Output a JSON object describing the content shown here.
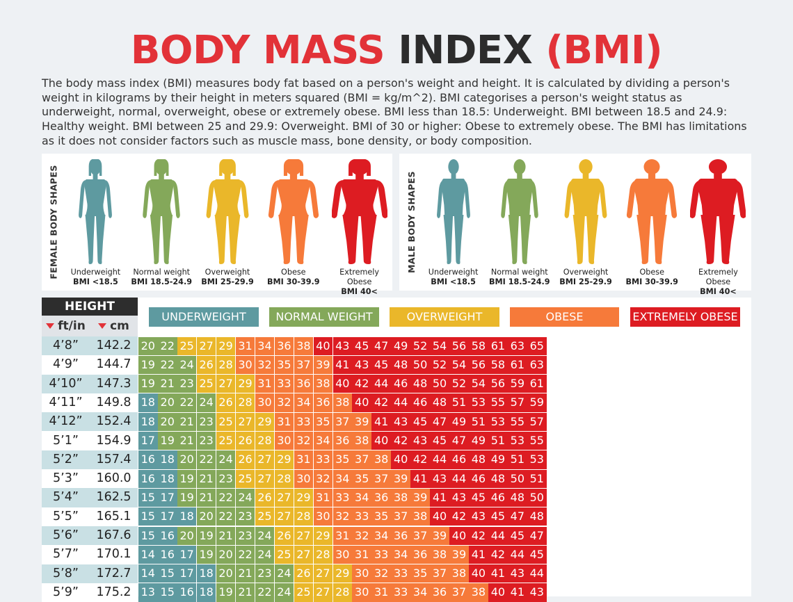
{
  "title": {
    "part1": "BODY MASS",
    "part2": "INDEX",
    "part3": "(BMI)"
  },
  "intro": "The body mass index (BMI) measures body fat based on a person's weight and height. It is calculated by dividing a person's weight in kilograms by their height in meters squared (BMI = kg/m^2). BMI categorises a person's weight status as underweight, normal, overweight, obese or extremely obese. BMI less than 18.5: Underweight. BMI between 18.5 and 24.9: Healthy weight. BMI between 25 and 29.9: Overweight. BMI of 30 or higher: Obese to extremely obese. The BMI has limitations as it does not consider factors such as muscle mass, bone density, or body composition.",
  "female_panel_label": "FEMALE BODY SHAPES",
  "male_panel_label": "MALE BODY SHAPES",
  "body_shapes": [
    {
      "label": "Underweight",
      "bmi": "BMI <18.5",
      "color": "#5e9aa0"
    },
    {
      "label": "Normal weight",
      "bmi": "BMI 18.5-24.9",
      "color": "#84a85a"
    },
    {
      "label": "Overweight",
      "bmi": "BMI 25-29.9",
      "color": "#eab72a"
    },
    {
      "label": "Obese",
      "bmi": "BMI 30-39.9",
      "color": "#f67a3a"
    },
    {
      "label": "Extremely Obese",
      "bmi": "BMI 40<",
      "color": "#dd1c22"
    }
  ],
  "table": {
    "height_header": "HEIGHT",
    "unit_ft": "ft/in",
    "unit_cm": "cm",
    "legend": [
      {
        "label": "UNDERWEIGHT",
        "color": "#5e9aa0"
      },
      {
        "label": "NORMAL WEIGHT",
        "color": "#84a85a"
      },
      {
        "label": "OVERWEIGHT",
        "color": "#eab72a"
      },
      {
        "label": "OBESE",
        "color": "#f67a3a"
      },
      {
        "label": "EXTREMELY OBESE",
        "color": "#dd1c22"
      }
    ],
    "row_colors": [
      "#c9e0e4",
      "#ffffff"
    ],
    "category_colors": {
      "underweight": "#5e9aa0",
      "normal": "#84a85a",
      "overweight": "#eab72a",
      "obese": "#f67a3a",
      "extremely_obese": "#dd1c22"
    }
  },
  "chart_data": {
    "type": "table",
    "columns_shown": 21,
    "heights_ft_in": [
      "4’8”",
      "4’9”",
      "4’10”",
      "4’11”",
      "4’12”",
      "5’1”",
      "5’2”",
      "5’3”",
      "5’4”",
      "5’5”",
      "5’6”",
      "5’7”",
      "5’8”",
      "5’9”"
    ],
    "heights_cm": [
      "142.2",
      "144.7",
      "147.3",
      "149.8",
      "152.4",
      "154.9",
      "157.4",
      "160.0",
      "162.5",
      "165.1",
      "167.6",
      "170.1",
      "172.7",
      "175.2"
    ],
    "bmi_values": [
      [
        20,
        22,
        25,
        27,
        29,
        31,
        34,
        36,
        38,
        40,
        43,
        45,
        47,
        49,
        52,
        54,
        56,
        58,
        61,
        63,
        65
      ],
      [
        19,
        22,
        24,
        26,
        28,
        30,
        32,
        35,
        37,
        39,
        41,
        43,
        45,
        48,
        50,
        52,
        54,
        56,
        58,
        61,
        63
      ],
      [
        19,
        21,
        23,
        25,
        27,
        29,
        31,
        33,
        36,
        38,
        40,
        42,
        44,
        46,
        48,
        50,
        52,
        54,
        56,
        59,
        61
      ],
      [
        18,
        20,
        22,
        24,
        26,
        28,
        30,
        32,
        34,
        36,
        38,
        40,
        42,
        44,
        46,
        48,
        51,
        53,
        55,
        57,
        59
      ],
      [
        18,
        20,
        21,
        23,
        25,
        27,
        29,
        31,
        33,
        35,
        37,
        39,
        41,
        43,
        45,
        47,
        49,
        51,
        53,
        55,
        57
      ],
      [
        17,
        19,
        21,
        23,
        25,
        26,
        28,
        30,
        32,
        34,
        36,
        38,
        40,
        42,
        43,
        45,
        47,
        49,
        51,
        53,
        55
      ],
      [
        16,
        18,
        20,
        22,
        24,
        26,
        27,
        29,
        31,
        33,
        35,
        37,
        38,
        40,
        42,
        44,
        46,
        48,
        49,
        51,
        53
      ],
      [
        16,
        18,
        19,
        21,
        23,
        25,
        27,
        28,
        30,
        32,
        34,
        35,
        37,
        39,
        41,
        43,
        44,
        46,
        48,
        50,
        51
      ],
      [
        15,
        17,
        19,
        21,
        22,
        24,
        26,
        27,
        29,
        31,
        33,
        34,
        36,
        38,
        39,
        41,
        43,
        45,
        46,
        48,
        50
      ],
      [
        15,
        17,
        18,
        20,
        22,
        23,
        25,
        27,
        28,
        30,
        32,
        33,
        35,
        37,
        38,
        40,
        42,
        43,
        45,
        47,
        48
      ],
      [
        15,
        16,
        20,
        19,
        21,
        23,
        24,
        26,
        27,
        29,
        31,
        32,
        34,
        36,
        37,
        39,
        40,
        42,
        44,
        45,
        47
      ],
      [
        14,
        16,
        17,
        19,
        20,
        22,
        24,
        25,
        27,
        28,
        30,
        31,
        33,
        34,
        36,
        38,
        39,
        41,
        42,
        44,
        45
      ],
      [
        14,
        15,
        17,
        18,
        20,
        21,
        23,
        24,
        26,
        27,
        29,
        30,
        32,
        33,
        35,
        37,
        38,
        40,
        41,
        43,
        44
      ],
      [
        13,
        15,
        16,
        18,
        19,
        21,
        22,
        24,
        25,
        27,
        28,
        30,
        31,
        33,
        34,
        36,
        37,
        38,
        40,
        41,
        43
      ]
    ]
  }
}
